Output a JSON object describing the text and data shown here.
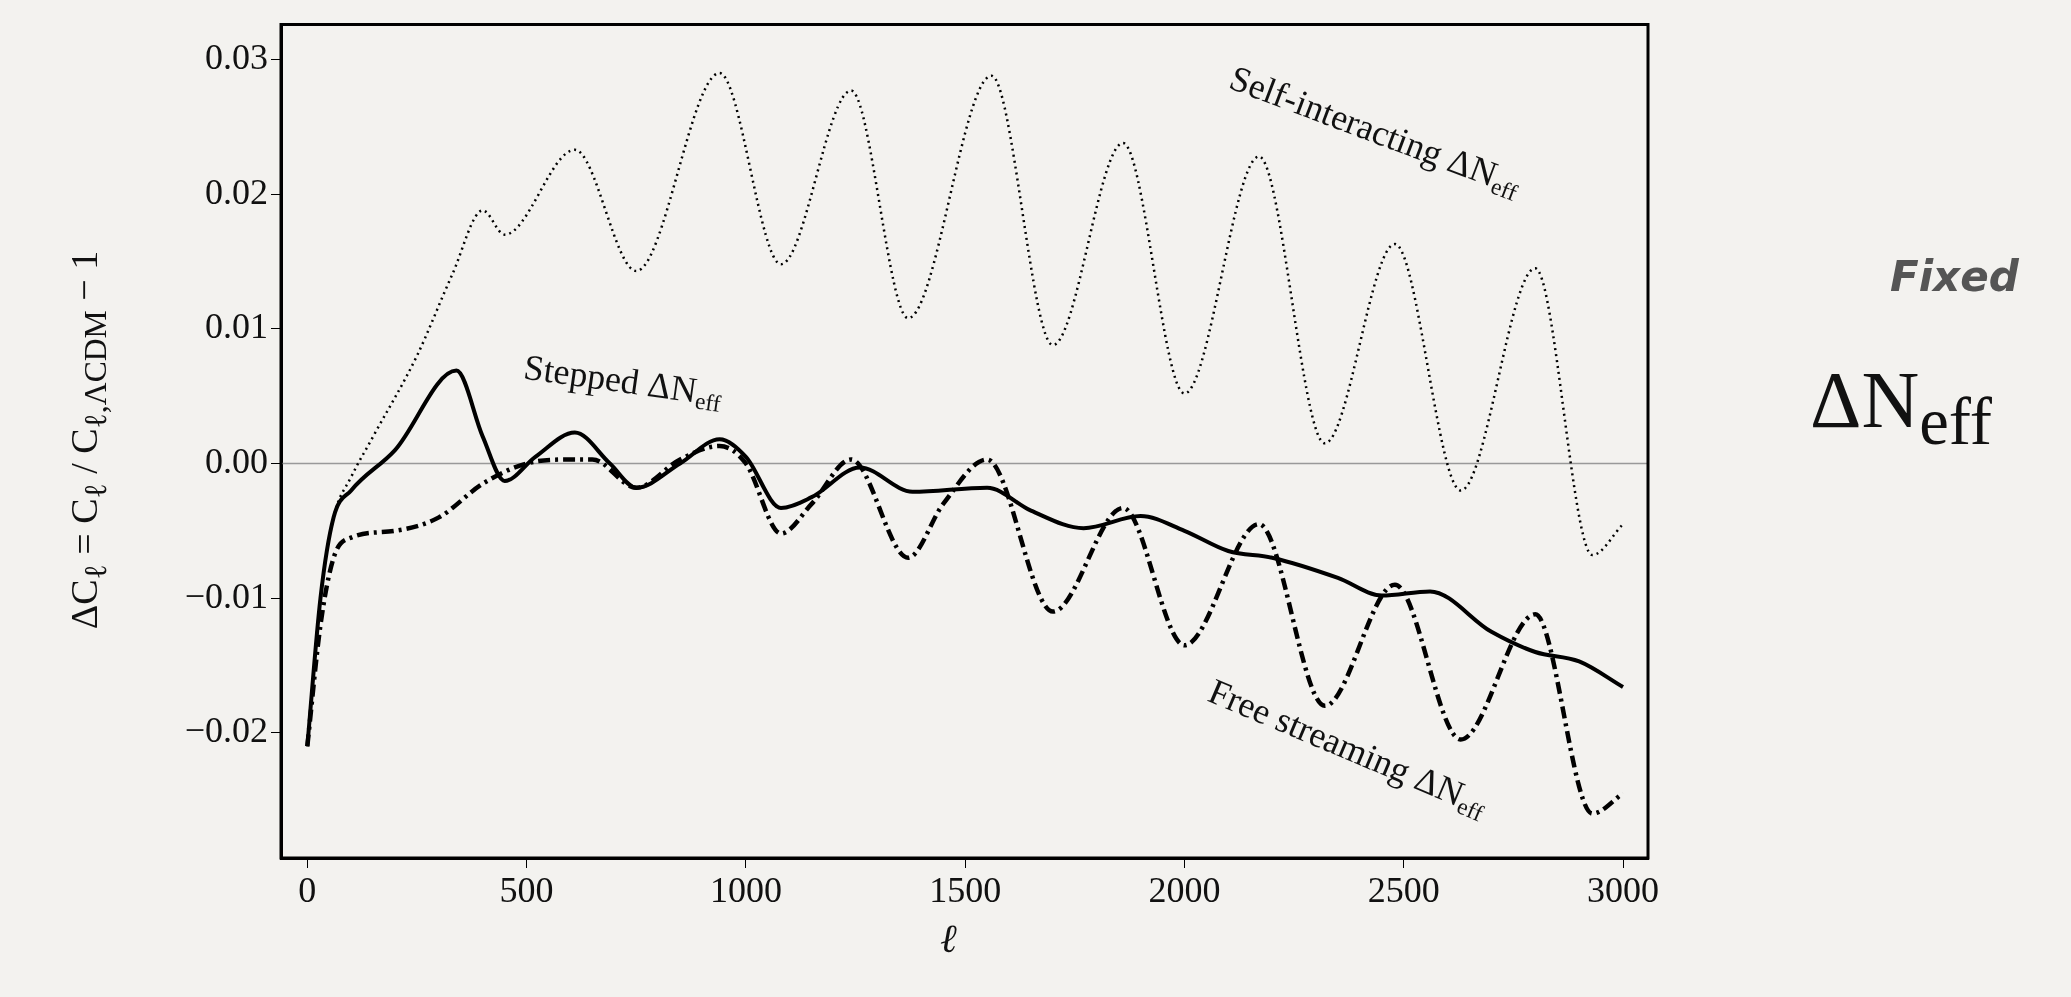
{
  "chart_data": {
    "type": "line",
    "xlabel": "ℓ",
    "ylabel": "ΔC$_{ℓ}$ = C$_{ℓ}$ / C$_{ℓ,ΛCDM}$ − 1",
    "series": [
      {
        "name": "Self-interacting ΔN$_{eff}$",
        "color": "#000000",
        "line_style": "dotted",
        "x": [
          0,
          30,
          60,
          100,
          150,
          250,
          330,
          400,
          450,
          610,
          750,
          940,
          1080,
          1240,
          1370,
          1560,
          1700,
          1860,
          2000,
          2170,
          2320,
          2480,
          2630,
          2800,
          2930,
          3000
        ],
        "values": [
          -0.021,
          -0.01,
          -0.004,
          -0.001,
          0.002,
          0.008,
          0.014,
          0.0188,
          0.017,
          0.0233,
          0.0143,
          0.029,
          0.0148,
          0.0277,
          0.0108,
          0.0288,
          0.0088,
          0.0238,
          0.0052,
          0.0228,
          0.0015,
          0.0163,
          -0.002,
          0.0145,
          -0.0068,
          -0.0045
        ]
      },
      {
        "name": "Stepped ΔN$_{eff}$",
        "color": "#000000",
        "line_style": "solid",
        "x": [
          0,
          30,
          60,
          100,
          200,
          340,
          400,
          450,
          520,
          610,
          690,
          750,
          850,
          940,
          1000,
          1080,
          1150,
          1260,
          1380,
          1550,
          1650,
          1770,
          1900,
          2000,
          2100,
          2200,
          2350,
          2450,
          2560,
          2700,
          2800,
          2900,
          3000
        ],
        "values": [
          -0.021,
          -0.01,
          -0.004,
          -0.002,
          0.001,
          0.0069,
          0.002,
          -0.0013,
          0.0005,
          0.0023,
          0.0,
          -0.0018,
          0.0,
          0.0018,
          0.0005,
          -0.0033,
          -0.0025,
          -0.0003,
          -0.0021,
          -0.0018,
          -0.0035,
          -0.0048,
          -0.0039,
          -0.005,
          -0.0065,
          -0.007,
          -0.0085,
          -0.0098,
          -0.0095,
          -0.0125,
          -0.014,
          -0.0147,
          -0.0166
        ]
      },
      {
        "name": "Free streaming ΔN$_{eff}$",
        "color": "#000000",
        "line_style": "dashed",
        "x": [
          0,
          30,
          60,
          100,
          200,
          300,
          400,
          500,
          600,
          650,
          750,
          850,
          940,
          1000,
          1080,
          1150,
          1240,
          1370,
          1450,
          1550,
          1700,
          1860,
          2000,
          2170,
          2320,
          2480,
          2630,
          2800,
          2930,
          3000
        ],
        "values": [
          -0.021,
          -0.012,
          -0.007,
          -0.0055,
          -0.005,
          -0.004,
          -0.0015,
          0.0,
          0.0003,
          0.0003,
          -0.0018,
          0.0003,
          0.0013,
          0.0,
          -0.0052,
          -0.003,
          0.0003,
          -0.007,
          -0.003,
          0.0003,
          -0.011,
          -0.0033,
          -0.0135,
          -0.0045,
          -0.018,
          -0.009,
          -0.0205,
          -0.0112,
          -0.026,
          -0.0245
        ]
      }
    ],
    "xlim": [
      -60,
      3057
    ],
    "ylim": [
      -0.0293,
      0.0326
    ],
    "xticks": [
      0,
      500,
      1000,
      1500,
      2000,
      2500,
      3000
    ],
    "yticks": [
      {
        "value": -0.02,
        "label": "−0.02"
      },
      {
        "value": -0.01,
        "label": "−0.01"
      },
      {
        "value": 0,
        "label": "0.00"
      },
      {
        "value": 0.01,
        "label": "0.01"
      },
      {
        "value": 0.02,
        "label": "0.02"
      },
      {
        "value": 0.03,
        "label": "0.03"
      }
    ],
    "ref_lines": [
      {
        "axis": "y",
        "value": 0,
        "color": "#999999"
      }
    ],
    "annotations": [
      "Fixed",
      "ΔN$_{eff}$"
    ],
    "grid": false,
    "legend": false
  }
}
